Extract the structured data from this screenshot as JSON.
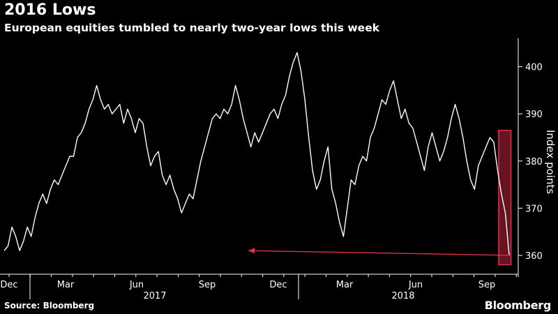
{
  "header": {
    "title": "2016 Lows",
    "subtitle": "European equities tumbled to nearly two-year lows this week"
  },
  "footer": {
    "source": "Source: Bloomberg",
    "brand": "Bloomberg"
  },
  "colors": {
    "background": "#000000",
    "line": "#ffffff",
    "highlight_fill": "#8b1a2b",
    "highlight_stroke": "#e0304a",
    "arrow": "#e0304a"
  },
  "chart_data": {
    "type": "line",
    "title": "2016 Lows",
    "subtitle": "European equities tumbled to nearly two-year lows this week",
    "ylabel": "Index points",
    "xlabel": "",
    "y_axis_side": "right",
    "ylim": [
      356,
      406
    ],
    "yticks": [
      360,
      370,
      380,
      390,
      400
    ],
    "grid": false,
    "x_tick_labels": [
      "Dec",
      "Mar",
      "Jun",
      "Sep",
      "Dec",
      "Mar",
      "Jun",
      "Sep"
    ],
    "x_year_labels": [
      "2017",
      "2018"
    ],
    "series": [
      {
        "values": [
          361,
          362,
          366,
          364,
          361,
          363,
          366,
          364,
          368,
          371,
          373,
          371,
          374,
          376,
          375,
          377,
          379,
          381,
          381,
          385,
          386,
          388,
          391,
          393,
          396,
          393,
          391,
          392,
          390,
          391,
          392,
          388,
          391,
          389,
          386,
          389,
          388,
          383,
          379,
          381,
          382,
          377,
          375,
          377,
          374,
          372,
          369,
          371,
          373,
          372,
          376,
          380,
          383,
          386,
          389,
          390,
          389,
          391,
          390,
          392,
          396,
          393,
          389,
          386,
          383,
          386,
          384,
          386,
          388,
          390,
          391,
          389,
          392,
          394,
          398,
          401,
          403,
          399,
          393,
          385,
          378,
          374,
          376,
          380,
          383,
          374,
          371,
          367,
          364,
          370,
          376,
          375,
          379,
          381,
          380,
          385,
          387,
          390,
          393,
          392,
          395,
          397,
          393,
          389,
          391,
          388,
          387,
          384,
          381,
          378,
          383,
          386,
          383,
          380,
          382,
          385,
          389,
          392,
          389,
          385,
          380,
          376,
          374,
          379,
          381,
          383,
          385,
          384,
          378,
          373,
          369,
          360
        ]
      }
    ],
    "highlight": {
      "type": "box",
      "x_from": 0.966,
      "x_to": 0.99,
      "y_from": 358,
      "y_to": 386.5
    },
    "annotation": {
      "type": "arrow",
      "from_value": 360,
      "to_value": 361,
      "direction": "left"
    }
  }
}
